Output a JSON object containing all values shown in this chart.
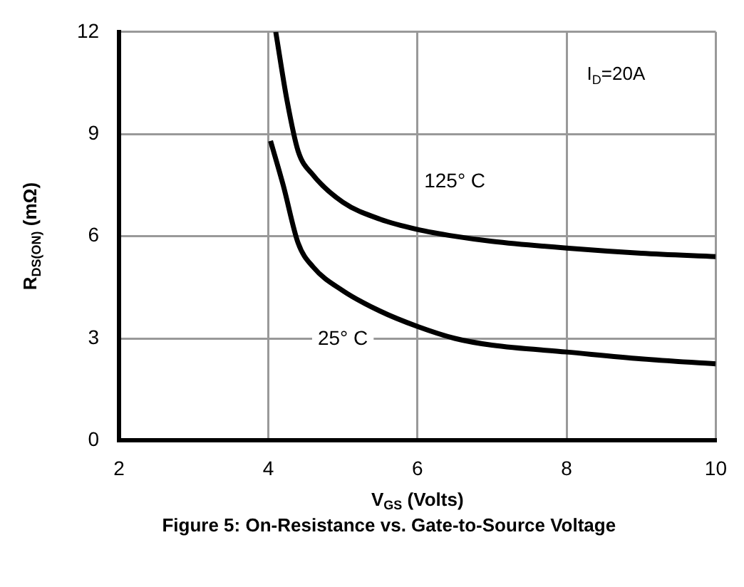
{
  "chart_data": {
    "type": "line",
    "xlabel": "V$_{GS}$ (Volts)",
    "ylabel": "R$_{DS(ON)}$ (mΩ)",
    "xlim": [
      2,
      10
    ],
    "xticks": [
      2,
      4,
      6,
      8,
      10
    ],
    "ylim": [
      0,
      12
    ],
    "yticks": [
      0,
      3,
      6,
      9,
      12
    ],
    "grid": true,
    "legend": false,
    "marker": "none",
    "line_style": "solid",
    "series": [
      {
        "name": "125° C",
        "color": "#000000",
        "x": [
          4.1,
          4.25,
          4.4,
          4.6,
          5.0,
          5.5,
          6.0,
          6.5,
          7.0,
          8.0,
          9.0,
          10.0
        ],
        "values": [
          12,
          10,
          8.5,
          7.8,
          7.0,
          6.5,
          6.2,
          6.0,
          5.85,
          5.65,
          5.5,
          5.4
        ]
      },
      {
        "name": "25° C",
        "color": "#000000",
        "x": [
          4.03,
          4.2,
          4.4,
          4.6,
          5.0,
          5.5,
          6.0,
          6.5,
          7.0,
          8.0,
          9.0,
          10.0
        ],
        "values": [
          8.8,
          7.5,
          5.8,
          5.1,
          4.4,
          3.8,
          3.35,
          3.0,
          2.8,
          2.6,
          2.4,
          2.25
        ]
      }
    ],
    "annotations": [
      "I$_{D}$=20A",
      "Figure 5: On-Resistance vs. Gate-to-Source Voltage"
    ]
  }
}
